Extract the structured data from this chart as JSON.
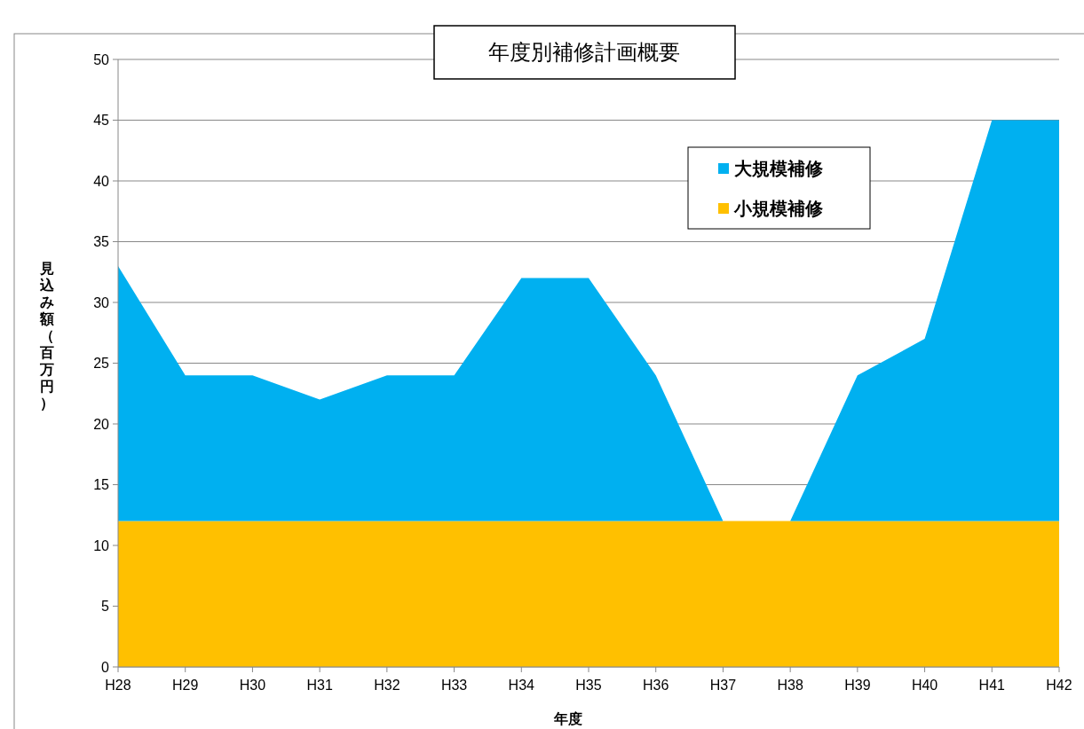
{
  "chart_data": {
    "type": "area",
    "stacked": true,
    "title": "年度別補修計画概要",
    "xlabel": "年度",
    "ylabel": "見込み額（百万円）",
    "categories": [
      "H28",
      "H29",
      "H30",
      "H31",
      "H32",
      "H33",
      "H34",
      "H35",
      "H36",
      "H37",
      "H38",
      "H39",
      "H40",
      "H41",
      "H42"
    ],
    "series": [
      {
        "name": "小規模補修",
        "color": "#ffc000",
        "values": [
          12,
          12,
          12,
          12,
          12,
          12,
          12,
          12,
          12,
          12,
          12,
          12,
          12,
          12,
          12
        ]
      },
      {
        "name": "大規模補修",
        "color": "#00b0f0",
        "values": [
          21,
          12,
          12,
          10,
          12,
          12,
          20,
          20,
          12,
          0,
          0,
          12,
          15,
          33,
          33
        ]
      }
    ],
    "ylim": [
      0,
      50
    ],
    "yticks": [
      0,
      5,
      10,
      15,
      20,
      25,
      30,
      35,
      40,
      45,
      50
    ],
    "grid": "y",
    "legend": "top right"
  }
}
